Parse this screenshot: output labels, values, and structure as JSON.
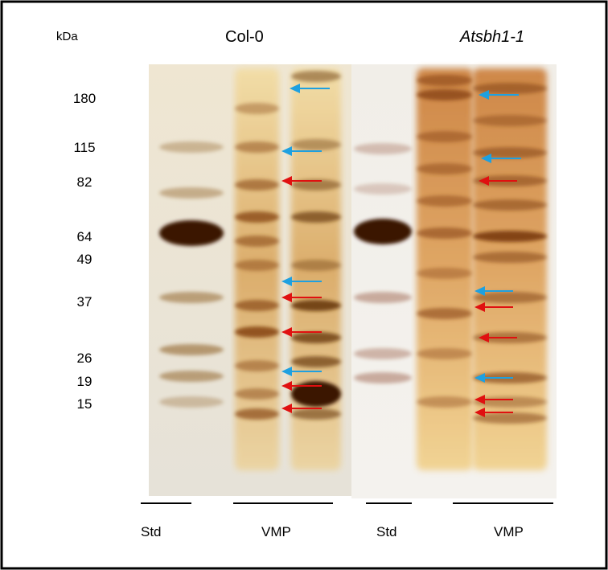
{
  "header": {
    "unit": "kDa",
    "left_sample": "Col-0",
    "right_sample": "Atsbh1-1"
  },
  "markers": [
    180,
    115,
    82,
    64,
    49,
    37,
    26,
    19,
    15
  ],
  "lanes": [
    "Std",
    "VMP",
    "Std",
    "VMP"
  ]
}
